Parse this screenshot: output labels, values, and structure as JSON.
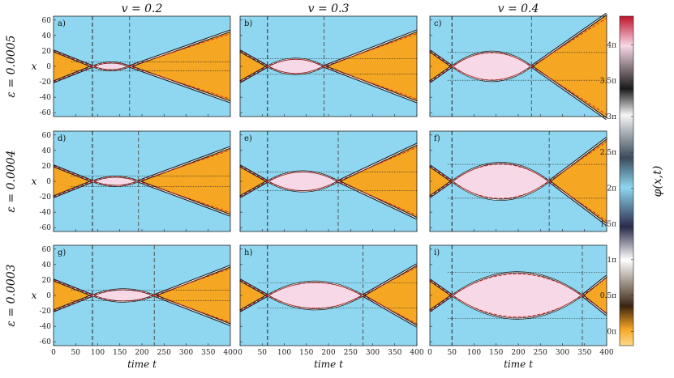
{
  "chart_data": {
    "type": "heatmap",
    "description_colorbar_label": "φ(x,t)",
    "column_titles": [
      "v = 0.2",
      "v = 0.3",
      "v = 0.4"
    ],
    "row_titles": [
      "ε = 0.0005",
      "ε = 0.0004",
      "ε = 0.0003"
    ],
    "xlabel": "time t",
    "ylabel": "x",
    "xlim": [
      0,
      400
    ],
    "ylim": [
      -65,
      65
    ],
    "xticks": [
      "0",
      "50",
      "100",
      "150",
      "200",
      "250",
      "300",
      "350",
      "400"
    ],
    "yticks": [
      "60",
      "40",
      "20",
      "0",
      "-20",
      "-40",
      "-60"
    ],
    "colorbar": {
      "ticks": [
        "4π",
        "3.5π",
        "3π",
        "2.5π",
        "2π",
        "1.5π",
        "1π",
        "0.5π",
        "0π"
      ],
      "range": [
        -0.2,
        4.4
      ],
      "colors": {
        "low": "#fdd98a",
        "zero": "#f5a623",
        "half": "#3a2410",
        "one": "#ffffff",
        "onehalf": "#2a2a4a",
        "two": "#8fd7f0",
        "twohalf": "#3a4a5a",
        "three": "#f5f5f5",
        "threehalf": "#1a1a1a",
        "four": "#f7d8e6",
        "high": "#c0122a"
      }
    },
    "panels": [
      {
        "label": "a)",
        "v": 0.2,
        "eps": 0.0005,
        "t1": 88,
        "t2": 172,
        "vlines": [
          88,
          172
        ],
        "hlines": [
          6,
          -6
        ],
        "peak": 5,
        "fan": 46
      },
      {
        "label": "b)",
        "v": 0.3,
        "eps": 0.0005,
        "t1": 62,
        "t2": 190,
        "vlines": [
          62,
          190
        ],
        "hlines": [
          10,
          -10
        ],
        "peak": 10,
        "fan": 46
      },
      {
        "label": "c)",
        "v": 0.4,
        "eps": 0.0005,
        "t1": 50,
        "t2": 230,
        "vlines": [
          50,
          230
        ],
        "hlines": [
          18,
          -18
        ],
        "peak": 19,
        "fan": 68
      },
      {
        "label": "d)",
        "v": 0.2,
        "eps": 0.0004,
        "t1": 88,
        "t2": 192,
        "vlines": [
          88,
          192
        ],
        "hlines": [
          7,
          -7
        ],
        "peak": 6,
        "fan": 44
      },
      {
        "label": "e)",
        "v": 0.3,
        "eps": 0.0004,
        "t1": 62,
        "t2": 222,
        "vlines": [
          62,
          222
        ],
        "hlines": [
          12,
          -12
        ],
        "peak": 13,
        "fan": 48
      },
      {
        "label": "f)",
        "v": 0.4,
        "eps": 0.0004,
        "t1": 50,
        "t2": 270,
        "vlines": [
          50,
          270
        ],
        "hlines": [
          22,
          -22
        ],
        "peak": 24,
        "fan": 56
      },
      {
        "label": "g)",
        "v": 0.2,
        "eps": 0.0003,
        "t1": 88,
        "t2": 228,
        "vlines": [
          88,
          228
        ],
        "hlines": [
          7,
          -7
        ],
        "peak": 8,
        "fan": 38
      },
      {
        "label": "h)",
        "v": 0.3,
        "eps": 0.0003,
        "t1": 62,
        "t2": 278,
        "vlines": [
          62,
          278
        ],
        "hlines": [
          16,
          -16
        ],
        "peak": 18,
        "fan": 40
      },
      {
        "label": "i)",
        "v": 0.4,
        "eps": 0.0003,
        "t1": 50,
        "t2": 345,
        "vlines": [
          50,
          345
        ],
        "hlines": [
          30,
          -30
        ],
        "peak": 30,
        "fan": 25
      }
    ]
  }
}
